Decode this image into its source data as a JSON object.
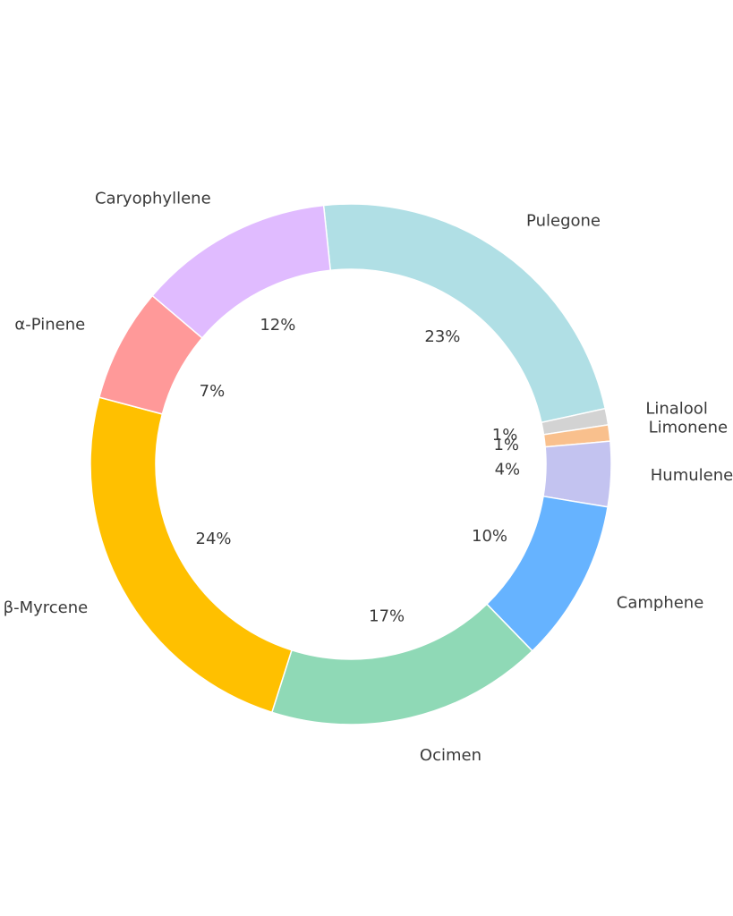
{
  "chart_data": {
    "type": "donut",
    "categories": [
      "Pulegone",
      "Linalool",
      "Limonene",
      "Humulene",
      "Camphene",
      "Ocimen",
      "β-Myrcene",
      "α-Pinene",
      "Caryophyllene"
    ],
    "values": [
      23,
      1,
      1,
      4,
      10,
      17,
      24,
      7,
      12
    ],
    "value_labels": [
      "23%",
      "1%",
      "1%",
      "4%",
      "10%",
      "17%",
      "24%",
      "7%",
      "12%"
    ],
    "colors": [
      "#b0dfe5",
      "#d3d3d3",
      "#f9c08d",
      "#c3c3f0",
      "#66b3ff",
      "#8fd9b6",
      "#ffc000",
      "#ff9999",
      "#e0bbff"
    ]
  }
}
